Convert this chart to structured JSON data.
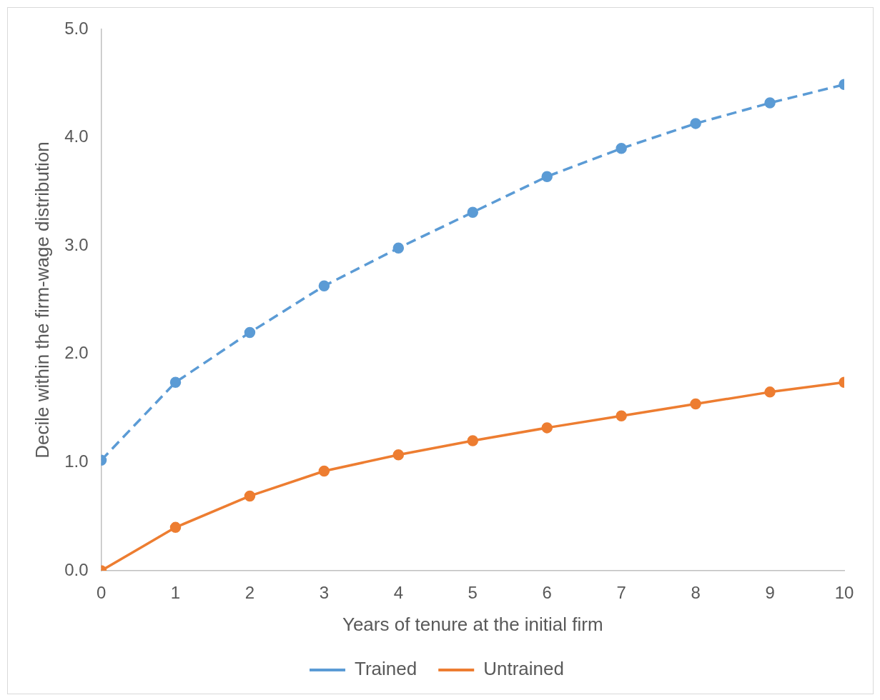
{
  "chart_data": {
    "type": "line",
    "xlabel": "Years of tenure at the initial firm",
    "ylabel": "Decile within the firm-wage distribution",
    "x": [
      0,
      1,
      2,
      3,
      4,
      5,
      6,
      7,
      8,
      9,
      10
    ],
    "xlim": [
      0,
      10
    ],
    "xticks": [
      0,
      1,
      2,
      3,
      4,
      5,
      6,
      7,
      8,
      9,
      10
    ],
    "ylim": [
      0,
      5
    ],
    "yticks": [
      {
        "value": 0,
        "label": "0.0"
      },
      {
        "value": 1,
        "label": "1.0"
      },
      {
        "value": 2,
        "label": "2.0"
      },
      {
        "value": 3,
        "label": "3.0"
      },
      {
        "value": 4,
        "label": "4.0"
      },
      {
        "value": 5,
        "label": "5.0"
      }
    ],
    "grid": false,
    "legend": "bottom",
    "marker": "circle",
    "series": [
      {
        "name": "Trained",
        "color": "#5b9bd5",
        "line_style": "dashed",
        "values": [
          1.02,
          1.74,
          2.2,
          2.63,
          2.98,
          3.31,
          3.64,
          3.9,
          4.13,
          4.32,
          4.49
        ]
      },
      {
        "name": "Untrained",
        "color": "#ed7d31",
        "line_style": "solid",
        "values": [
          0,
          0.4,
          0.69,
          0.92,
          1.07,
          1.2,
          1.32,
          1.43,
          1.54,
          1.65,
          1.74
        ]
      }
    ]
  }
}
